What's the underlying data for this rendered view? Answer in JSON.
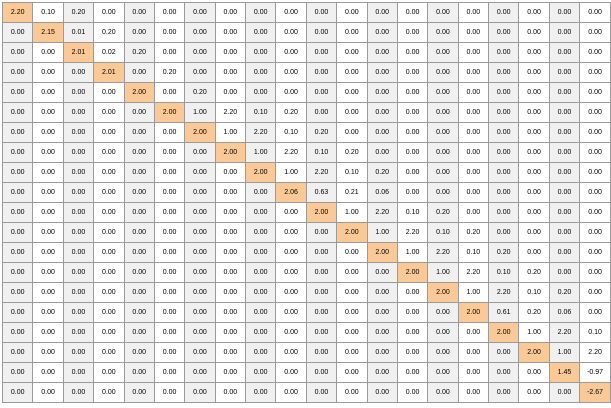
{
  "colors": {
    "cell_even": "#f0f0f0",
    "cell_odd": "#ffffff",
    "cell_diagonal": "#fac995",
    "grid_line": "#9a9a9a"
  },
  "matrix": {
    "diagonal_highlight": true,
    "rows": [
      [
        "2.20",
        "0.10",
        "0.20",
        "0.00",
        "0.00",
        "0.00",
        "0.00",
        "0.00",
        "0.00",
        "0.00",
        "0.00",
        "0.00",
        "0.00",
        "0.00",
        "0.00",
        "0.00",
        "0.00",
        "0.00",
        "0.00",
        "0.00"
      ],
      [
        "0.00",
        "2.15",
        "0.01",
        "0.20",
        "0.00",
        "0.00",
        "0.00",
        "0.00",
        "0.00",
        "0.00",
        "0.00",
        "0.00",
        "0.00",
        "0.00",
        "0.00",
        "0.00",
        "0.00",
        "0.00",
        "0.00",
        "0.00"
      ],
      [
        "0.00",
        "0.00",
        "2.01",
        "0.02",
        "0.20",
        "0.00",
        "0.00",
        "0.00",
        "0.00",
        "0.00",
        "0.00",
        "0.00",
        "0.00",
        "0.00",
        "0.00",
        "0.00",
        "0.00",
        "0.00",
        "0.00",
        "0.00"
      ],
      [
        "0.00",
        "0.00",
        "0.00",
        "2.01",
        "0.00",
        "0.20",
        "0.00",
        "0.00",
        "0.00",
        "0.00",
        "0.00",
        "0.00",
        "0.00",
        "0.00",
        "0.00",
        "0.00",
        "0.00",
        "0.00",
        "0.00",
        "0.00"
      ],
      [
        "0.00",
        "0.00",
        "0.00",
        "0.00",
        "2.00",
        "0.00",
        "0.20",
        "0.00",
        "0.00",
        "0.00",
        "0.00",
        "0.00",
        "0.00",
        "0.00",
        "0.00",
        "0.00",
        "0.00",
        "0.00",
        "0.00",
        "0.00"
      ],
      [
        "0.00",
        "0.00",
        "0.00",
        "0.00",
        "0.00",
        "2.00",
        "1.00",
        "2.20",
        "0.10",
        "0.20",
        "0.00",
        "0.00",
        "0.00",
        "0.00",
        "0.00",
        "0.00",
        "0.00",
        "0.00",
        "0.00",
        "0.00"
      ],
      [
        "0.00",
        "0.00",
        "0.00",
        "0.00",
        "0.00",
        "0.00",
        "2.00",
        "1.00",
        "2.20",
        "0.10",
        "0.20",
        "0.00",
        "0.00",
        "0.00",
        "0.00",
        "0.00",
        "0.00",
        "0.00",
        "0.00",
        "0.00"
      ],
      [
        "0.00",
        "0.00",
        "0.00",
        "0.00",
        "0.00",
        "0.00",
        "0.00",
        "2.00",
        "1.00",
        "2.20",
        "0.10",
        "0.20",
        "0.00",
        "0.00",
        "0.00",
        "0.00",
        "0.00",
        "0.00",
        "0.00",
        "0.00"
      ],
      [
        "0.00",
        "0.00",
        "0.00",
        "0.00",
        "0.00",
        "0.00",
        "0.00",
        "0.00",
        "2.00",
        "1.00",
        "2.20",
        "0.10",
        "0.20",
        "0.00",
        "0.00",
        "0.00",
        "0.00",
        "0.00",
        "0.00",
        "0.00"
      ],
      [
        "0.00",
        "0.00",
        "0.00",
        "0.00",
        "0.00",
        "0.00",
        "0.00",
        "0.00",
        "0.00",
        "2.06",
        "0.63",
        "0.21",
        "0.06",
        "0.00",
        "0.00",
        "0.00",
        "0.00",
        "0.00",
        "0.00",
        "0.00"
      ],
      [
        "0.00",
        "0.00",
        "0.00",
        "0.00",
        "0.00",
        "0.00",
        "0.00",
        "0.00",
        "0.00",
        "0.00",
        "2.00",
        "1.00",
        "2.20",
        "0.10",
        "0.20",
        "0.00",
        "0.00",
        "0.00",
        "0.00",
        "0.00"
      ],
      [
        "0.00",
        "0.00",
        "0.00",
        "0.00",
        "0.00",
        "0.00",
        "0.00",
        "0.00",
        "0.00",
        "0.00",
        "0.00",
        "2.00",
        "1.00",
        "2.20",
        "0.10",
        "0.20",
        "0.00",
        "0.00",
        "0.00",
        "0.00"
      ],
      [
        "0.00",
        "0.00",
        "0.00",
        "0.00",
        "0.00",
        "0.00",
        "0.00",
        "0.00",
        "0.00",
        "0.00",
        "0.00",
        "0.00",
        "2.00",
        "1.00",
        "2.20",
        "0.10",
        "0.20",
        "0.00",
        "0.00",
        "0.00"
      ],
      [
        "0.00",
        "0.00",
        "0.00",
        "0.00",
        "0.00",
        "0.00",
        "0.00",
        "0.00",
        "0.00",
        "0.00",
        "0.00",
        "0.00",
        "0.00",
        "2.00",
        "1.00",
        "2.20",
        "0.10",
        "0.20",
        "0.00",
        "0.00"
      ],
      [
        "0.00",
        "0.00",
        "0.00",
        "0.00",
        "0.00",
        "0.00",
        "0.00",
        "0.00",
        "0.00",
        "0.00",
        "0.00",
        "0.00",
        "0.00",
        "0.00",
        "2.00",
        "1.00",
        "2.20",
        "0.10",
        "0.20",
        "0.00"
      ],
      [
        "0.00",
        "0.00",
        "0.00",
        "0.00",
        "0.00",
        "0.00",
        "0.00",
        "0.00",
        "0.00",
        "0.00",
        "0.00",
        "0.00",
        "0.00",
        "0.00",
        "0.00",
        "2.00",
        "0.61",
        "0.20",
        "0.06",
        "0.00"
      ],
      [
        "0.00",
        "0.00",
        "0.00",
        "0.00",
        "0.00",
        "0.00",
        "0.00",
        "0.00",
        "0.00",
        "0.00",
        "0.00",
        "0.00",
        "0.00",
        "0.00",
        "0.00",
        "0.00",
        "2.00",
        "1.00",
        "2.20",
        "0.10"
      ],
      [
        "0.00",
        "0.00",
        "0.00",
        "0.00",
        "0.00",
        "0.00",
        "0.00",
        "0.00",
        "0.00",
        "0.00",
        "0.00",
        "0.00",
        "0.00",
        "0.00",
        "0.00",
        "0.00",
        "0.00",
        "2.00",
        "1.00",
        "2.20"
      ],
      [
        "0.00",
        "0.00",
        "0.00",
        "0.00",
        "0.00",
        "0.00",
        "0.00",
        "0.00",
        "0.00",
        "0.00",
        "0.00",
        "0.00",
        "0.00",
        "0.00",
        "0.00",
        "0.00",
        "0.00",
        "0.00",
        "1.45",
        "-0.97"
      ],
      [
        "0.00",
        "0.00",
        "0.00",
        "0.00",
        "0.00",
        "0.00",
        "0.00",
        "0.00",
        "0.00",
        "0.00",
        "0.00",
        "0.00",
        "0.00",
        "0.00",
        "0.00",
        "0.00",
        "0.00",
        "0.00",
        "0.00",
        "-2.67"
      ]
    ]
  }
}
